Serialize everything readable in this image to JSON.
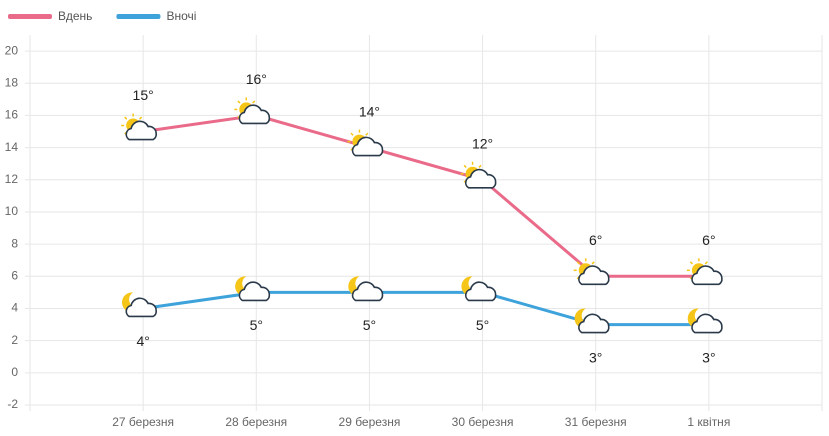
{
  "chart_data": {
    "type": "line",
    "categories": [
      "27 березня",
      "28 березня",
      "29 березня",
      "30 березня",
      "31 березня",
      "1 квітня"
    ],
    "series": [
      {
        "name": "Вдень",
        "color": "#ea6a8a",
        "values": [
          15,
          16,
          14,
          12,
          6,
          6
        ],
        "value_labels": [
          "15°",
          "16°",
          "14°",
          "12°",
          "6°",
          "6°"
        ]
      },
      {
        "name": "Вночі",
        "color": "#3ea2db",
        "values": [
          4,
          5,
          5,
          5,
          3,
          3
        ],
        "value_labels": [
          "4°",
          "5°",
          "5°",
          "5°",
          "3°",
          "3°"
        ]
      }
    ],
    "ylim": [
      -2,
      21
    ],
    "yticks": [
      -2,
      0,
      2,
      4,
      6,
      8,
      10,
      12,
      14,
      16,
      18,
      20
    ],
    "grid": true
  }
}
